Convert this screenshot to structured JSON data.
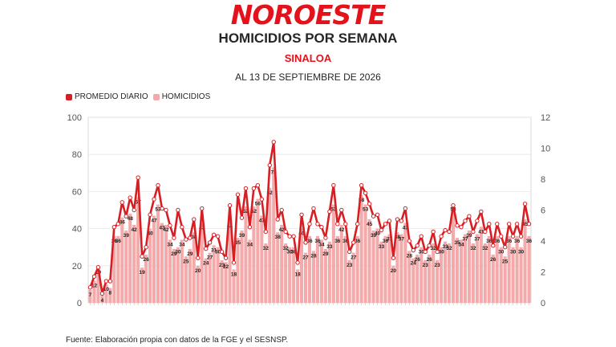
{
  "header": {
    "logo_text": "NOROESTE",
    "title": "HOMICIDIOS POR SEMANA",
    "subtitle": "SINALOA",
    "date": "AL 13 DE SEPTIEMBRE DE 2026"
  },
  "legend": {
    "line_label": "PROMEDIO DIARIO",
    "bar_label": "HOMICIDIOS"
  },
  "colors": {
    "line": "#d81e22",
    "bar": "#f4aaaa",
    "grid": "#e6e6e6"
  },
  "source": "Fuente: Elaboración propia con datos de la FGE y el SESNSP.",
  "chart_data": {
    "type": "bar",
    "title": "HOMICIDIOS POR SEMANA",
    "ylim": [
      0,
      100
    ],
    "y2lim": [
      0,
      12
    ],
    "y_ticks": [
      "0",
      "20",
      "40",
      "60",
      "80",
      "100"
    ],
    "y2_ticks": [
      "0",
      "2",
      "4",
      "6",
      "8",
      "10",
      "12"
    ],
    "grid": true,
    "legend_position": "top-left",
    "series": [
      {
        "name": "HOMICIDIOS",
        "kind": "bar",
        "axis": "left",
        "values": [
          7,
          12,
          19,
          4,
          10,
          8,
          36,
          36,
          46,
          39,
          48,
          42,
          57,
          19,
          26,
          40,
          47,
          53,
          43,
          42,
          34,
          29,
          30,
          34,
          25,
          29,
          38,
          20,
          43,
          24,
          27,
          31,
          30,
          23,
          22,
          44,
          18,
          35,
          39,
          52,
          34,
          52,
          56,
          47,
          32,
          62,
          73,
          38,
          42,
          32,
          30,
          30,
          18,
          40,
          27,
          36,
          28,
          36,
          34,
          29,
          33,
          53,
          36,
          42,
          36,
          23,
          27,
          36,
          58,
          53,
          45,
          39,
          40,
          33,
          36,
          37,
          20,
          38,
          37,
          43,
          28,
          24,
          26,
          30,
          23,
          26,
          32,
          23,
          30,
          33,
          32,
          53,
          35,
          34,
          37,
          39,
          32,
          37,
          41,
          32,
          36,
          26,
          36,
          30,
          25,
          36,
          30,
          36,
          30,
          45,
          36
        ]
      },
      {
        "name": "PROMEDIO DIARIO",
        "kind": "line",
        "axis": "right",
        "values": [
          1.0,
          1.7,
          2.3,
          0.6,
          1.4,
          1.4,
          4.9,
          5.1,
          6.5,
          5.6,
          6.8,
          6.0,
          8.1,
          3.0,
          3.6,
          5.7,
          6.7,
          7.6,
          6.1,
          6.0,
          5.0,
          4.2,
          6.0,
          4.9,
          4.1,
          4.2,
          5.4,
          2.9,
          6.1,
          3.5,
          3.9,
          4.4,
          4.3,
          3.3,
          2.9,
          6.3,
          2.6,
          7.0,
          5.5,
          7.4,
          4.9,
          7.4,
          7.6,
          6.7,
          4.6,
          8.9,
          10.4,
          5.4,
          6.0,
          4.6,
          4.3,
          4.3,
          2.6,
          5.7,
          3.9,
          5.1,
          6.1,
          5.1,
          4.9,
          4.2,
          5.9,
          7.6,
          5.1,
          6.0,
          5.1,
          3.3,
          3.9,
          5.1,
          7.6,
          7.1,
          6.4,
          5.6,
          5.7,
          4.7,
          5.1,
          5.3,
          2.9,
          5.4,
          5.3,
          6.1,
          4.0,
          3.4,
          3.7,
          4.3,
          3.3,
          3.7,
          4.6,
          3.3,
          4.3,
          4.7,
          4.6,
          6.3,
          5.0,
          4.9,
          5.3,
          5.6,
          4.6,
          5.3,
          5.9,
          4.6,
          5.1,
          3.7,
          5.1,
          4.3,
          3.6,
          5.1,
          4.3,
          5.1,
          4.3,
          6.4,
          5.1
        ]
      }
    ]
  }
}
